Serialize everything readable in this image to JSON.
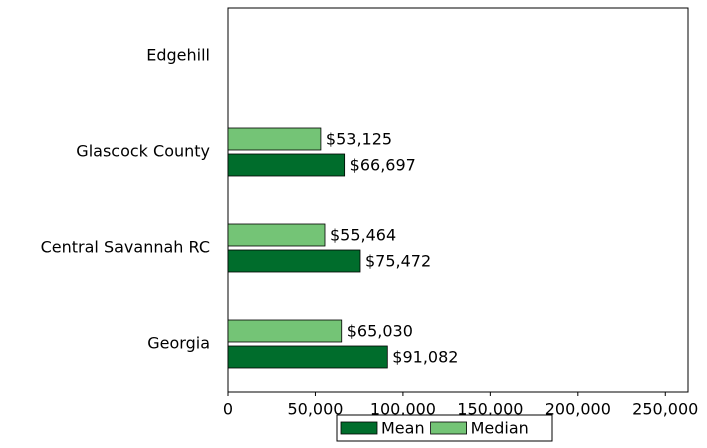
{
  "chart_data": {
    "type": "bar",
    "orientation": "horizontal",
    "categories": [
      "Edgehill",
      "Glascock County",
      "Central Savannah RC",
      "Georgia"
    ],
    "series": [
      {
        "name": "Mean",
        "color": "#006d2c",
        "values": [
          0,
          66697,
          75472,
          91082
        ],
        "value_labels": [
          null,
          "$66,697",
          "$75,472",
          "$91,082"
        ]
      },
      {
        "name": "Median",
        "color": "#74c476",
        "values": [
          0,
          53125,
          55464,
          65030
        ],
        "value_labels": [
          null,
          "$53,125",
          "$55,464",
          "$65,030"
        ]
      }
    ],
    "xlim": [
      0,
      263000
    ],
    "xticks": [
      0,
      {
        "value": 50000,
        "label": "50,000"
      },
      {
        "value": 100000,
        "label": "100,000"
      },
      {
        "value": 150000,
        "label": "150,000"
      },
      {
        "value": 200000,
        "label": "200,000"
      },
      {
        "value": 250000,
        "label": "250,000"
      }
    ],
    "legend": "bottom",
    "grid": false
  }
}
